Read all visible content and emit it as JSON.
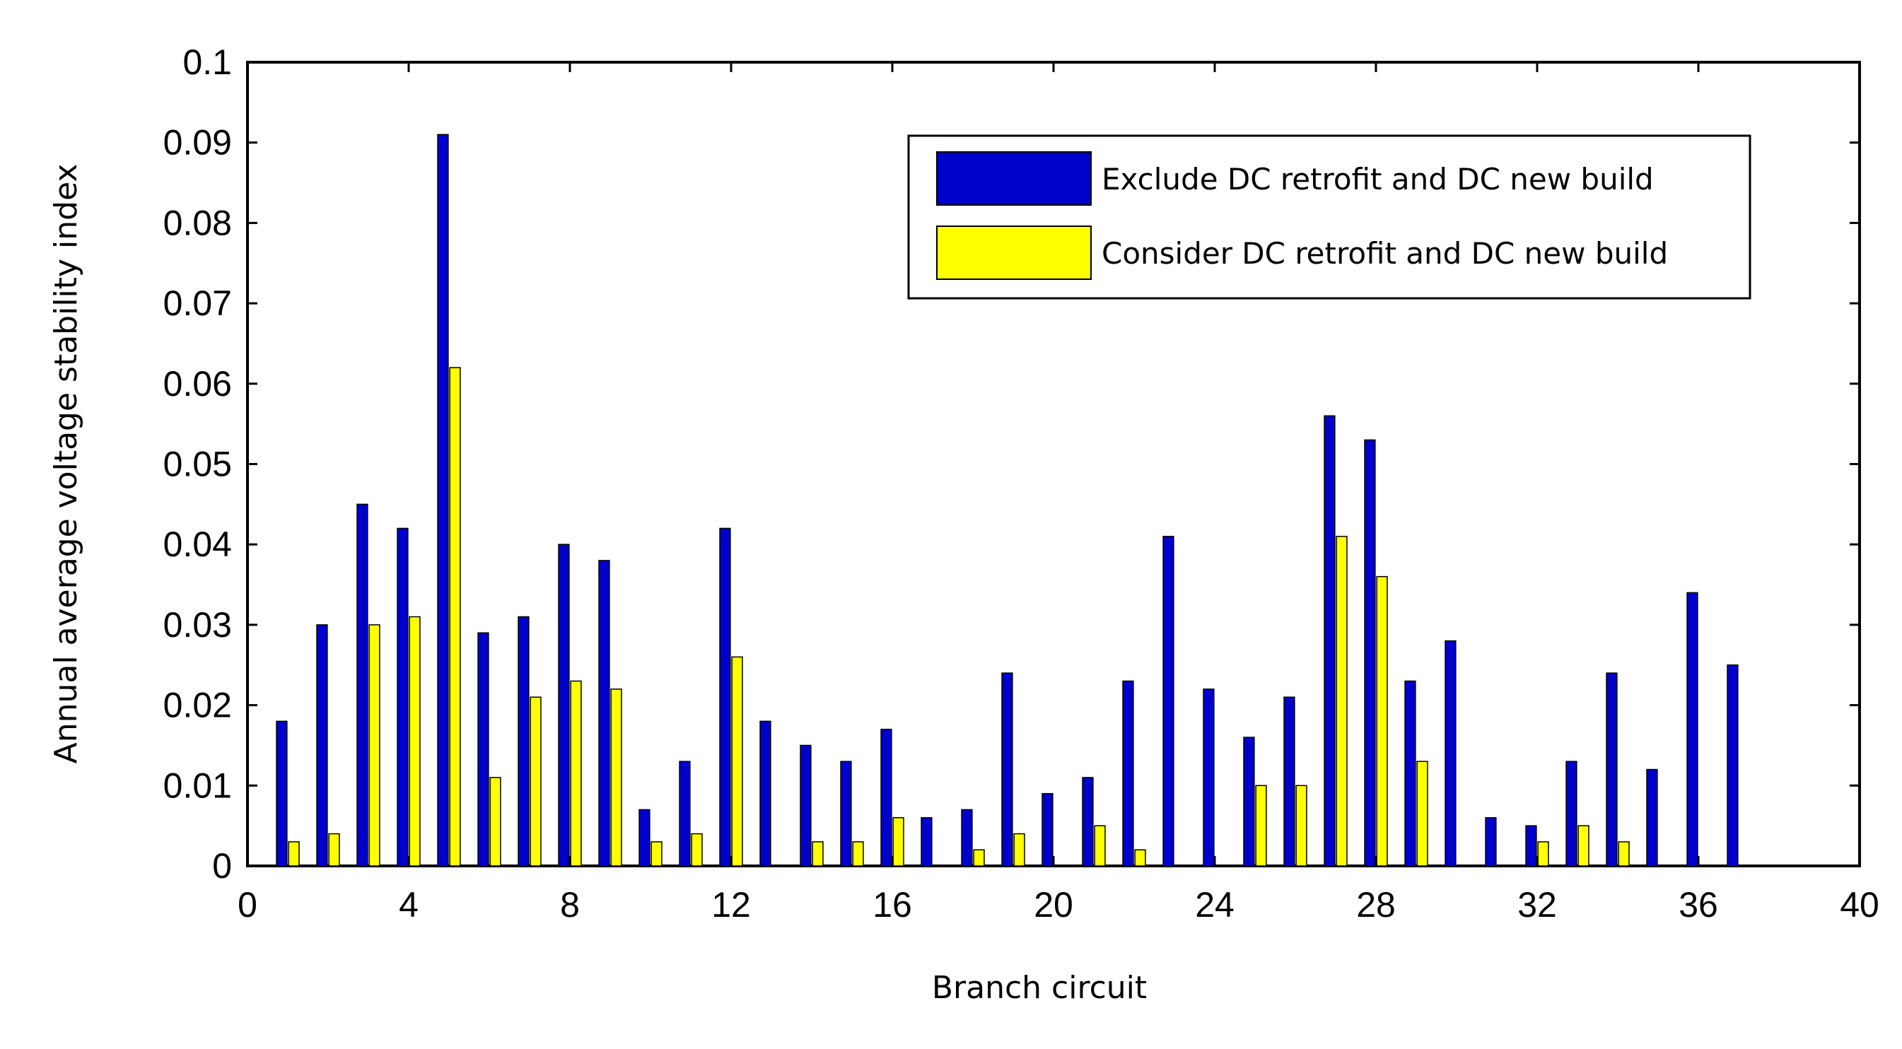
{
  "chart_data": {
    "type": "bar",
    "xlabel": "Branch circuit",
    "ylabel": "Annual average voltage stability index",
    "xlim": [
      0,
      40
    ],
    "ylim": [
      0,
      0.1
    ],
    "xticks": [
      0,
      4,
      8,
      12,
      16,
      20,
      24,
      28,
      32,
      36,
      40
    ],
    "yticks": [
      0,
      0.01,
      0.02,
      0.03,
      0.04,
      0.05,
      0.06,
      0.07,
      0.08,
      0.09,
      0.1
    ],
    "ytick_labels": [
      "0",
      "0.01",
      "0.02",
      "0.03",
      "0.04",
      "0.05",
      "0.06",
      "0.07",
      "0.08",
      "0.09",
      "0.1"
    ],
    "legend_position": "top-right",
    "categories": [
      1,
      2,
      3,
      4,
      5,
      6,
      7,
      8,
      9,
      10,
      11,
      12,
      13,
      14,
      15,
      16,
      17,
      18,
      19,
      20,
      21,
      22,
      23,
      24,
      25,
      26,
      27,
      28,
      29,
      30,
      31,
      32,
      33,
      34,
      35,
      36,
      37
    ],
    "series": [
      {
        "name": "Exclude DC retrofit and DC new build",
        "color": "#0000cc",
        "values": [
          0.018,
          0.03,
          0.045,
          0.042,
          0.091,
          0.029,
          0.031,
          0.04,
          0.038,
          0.007,
          0.013,
          0.042,
          0.018,
          0.015,
          0.013,
          0.017,
          0.006,
          0.007,
          0.024,
          0.009,
          0.011,
          0.023,
          0.041,
          0.022,
          0.016,
          0.021,
          0.056,
          0.053,
          0.023,
          0.028,
          0.006,
          0.005,
          0.013,
          0.024,
          0.012,
          0.034,
          0.025
        ]
      },
      {
        "name": "Consider DC retrofit and DC new build",
        "color": "#ffff00",
        "values": [
          0.003,
          0.004,
          0.03,
          0.031,
          0.062,
          0.011,
          0.021,
          0.023,
          0.022,
          0.003,
          0.004,
          0.026,
          0,
          0.003,
          0.003,
          0.006,
          0,
          0.002,
          0.004,
          0,
          0.005,
          0.002,
          0,
          0,
          0.01,
          0.01,
          0.041,
          0.036,
          0.013,
          0,
          0,
          0.003,
          0.005,
          0.003,
          0,
          0,
          0
        ]
      }
    ]
  }
}
